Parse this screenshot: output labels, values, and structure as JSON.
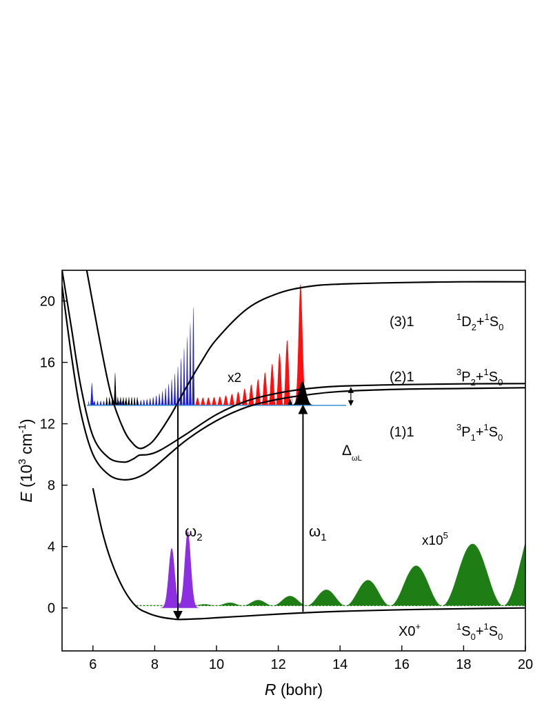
{
  "chart_data": {
    "type": "line",
    "title": "",
    "xlabel": {
      "italic": "R",
      "rest": " (bohr)"
    },
    "ylabel": {
      "italic": "E",
      "open": " (10",
      "sup1": "3",
      "mid": " cm",
      "sup2": "-1",
      "close": ")"
    },
    "xlim": [
      5,
      20
    ],
    "ylim": [
      -2.8,
      22
    ],
    "x_ticks": [
      6,
      8,
      10,
      12,
      14,
      16,
      18,
      20
    ],
    "y_ticks": [
      0,
      4,
      8,
      12,
      16,
      20
    ],
    "grid": false,
    "potentials": [
      {
        "state": "X0",
        "state_sup": "+",
        "asymptote": {
          "a": "S",
          "a_pre": "1",
          "a_sub": "0",
          "b": "S",
          "b_pre": "1",
          "b_sub": "0"
        },
        "x": [
          6.0,
          6.3,
          6.6,
          7.0,
          7.4,
          7.8,
          8.2,
          8.6,
          8.8,
          9.0,
          9.5,
          10.0,
          11.0,
          12.0,
          13.0,
          14.0,
          16.0,
          18.0,
          20.0
        ],
        "y": [
          7.8,
          5.0,
          3.0,
          1.2,
          0.1,
          -0.35,
          -0.6,
          -0.72,
          -0.75,
          -0.74,
          -0.7,
          -0.64,
          -0.52,
          -0.4,
          -0.3,
          -0.22,
          -0.12,
          -0.05,
          0.0
        ]
      },
      {
        "state": "(1)1",
        "asymptote": {
          "a": "P",
          "a_pre": "3",
          "a_sub": "1",
          "b": "S",
          "b_pre": "1",
          "b_sub": "0"
        },
        "x": [
          5.0,
          5.3,
          5.6,
          6.0,
          6.5,
          7.0,
          7.5,
          8.0,
          9.0,
          10.0,
          11.0,
          12.0,
          13.0,
          14.0,
          16.0,
          18.0,
          20.0
        ],
        "y": [
          21.0,
          16.5,
          12.8,
          10.0,
          8.7,
          8.35,
          8.55,
          9.2,
          10.9,
          12.2,
          13.1,
          13.6,
          13.9,
          14.1,
          14.25,
          14.3,
          14.35
        ]
      },
      {
        "state": "(2)1",
        "asymptote": {
          "a": "P",
          "a_pre": "3",
          "a_sub": "2",
          "b": "S",
          "b_pre": "1",
          "b_sub": "0"
        },
        "x": [
          5.0,
          5.3,
          5.6,
          6.0,
          6.5,
          7.0,
          7.3,
          7.5,
          7.8,
          8.2,
          9.0,
          10.0,
          11.0,
          12.0,
          13.0,
          14.0,
          16.0,
          18.0,
          20.0
        ],
        "y": [
          22.0,
          18.3,
          14.5,
          11.2,
          9.8,
          9.5,
          9.7,
          9.95,
          10.0,
          10.3,
          11.3,
          12.6,
          13.5,
          14.0,
          14.3,
          14.45,
          14.55,
          14.6,
          14.62
        ]
      },
      {
        "state": "(3)1",
        "asymptote": {
          "a": "D",
          "a_pre": "1",
          "a_sub": "2",
          "b": "S",
          "b_pre": "1",
          "b_sub": "0"
        },
        "x": [
          5.8,
          6.0,
          6.3,
          6.6,
          7.0,
          7.3,
          7.5,
          7.7,
          8.0,
          8.5,
          9.0,
          9.5,
          10.0,
          11.0,
          12.0,
          13.0,
          14.0,
          16.0,
          18.0,
          20.0
        ],
        "y": [
          22.0,
          19.8,
          16.6,
          13.8,
          11.6,
          10.7,
          10.4,
          10.5,
          11.0,
          12.5,
          14.3,
          16.0,
          17.5,
          19.5,
          20.5,
          20.95,
          21.1,
          21.2,
          21.25,
          21.25
        ]
      }
    ],
    "wavepackets": [
      {
        "name": "ground_continuum",
        "color": "#1e7d14",
        "label_base": "x10",
        "label_sup": "5",
        "baseline": 0.15
      },
      {
        "name": "excited_blue",
        "color": "#1f1fd8",
        "baseline": 13.2
      },
      {
        "name": "excited_black",
        "color": "#000000",
        "baseline": 13.2
      },
      {
        "name": "excited_red",
        "color": "#ff0f0f",
        "label": "x2",
        "baseline": 13.2
      },
      {
        "name": "bound_violet",
        "color": "#8c2fe0",
        "peaks": [
          {
            "x": 8.55,
            "y": 3.9
          },
          {
            "x": 9.07,
            "y": 5.0
          }
        ]
      }
    ],
    "transitions": [
      {
        "label": "ω",
        "sub": "1",
        "x": 12.8,
        "from": -0.25,
        "to": 13.2
      },
      {
        "label": "ω",
        "sub": "2",
        "x": 8.75,
        "from": 13.2,
        "to": -0.75
      }
    ],
    "detuning": {
      "label": "Δ",
      "sub": "ωL",
      "x": 14.35,
      "from": 13.2,
      "to": 14.35
    },
    "baseline_line": {
      "y": 13.2,
      "color": "#3b8fd8"
    }
  }
}
